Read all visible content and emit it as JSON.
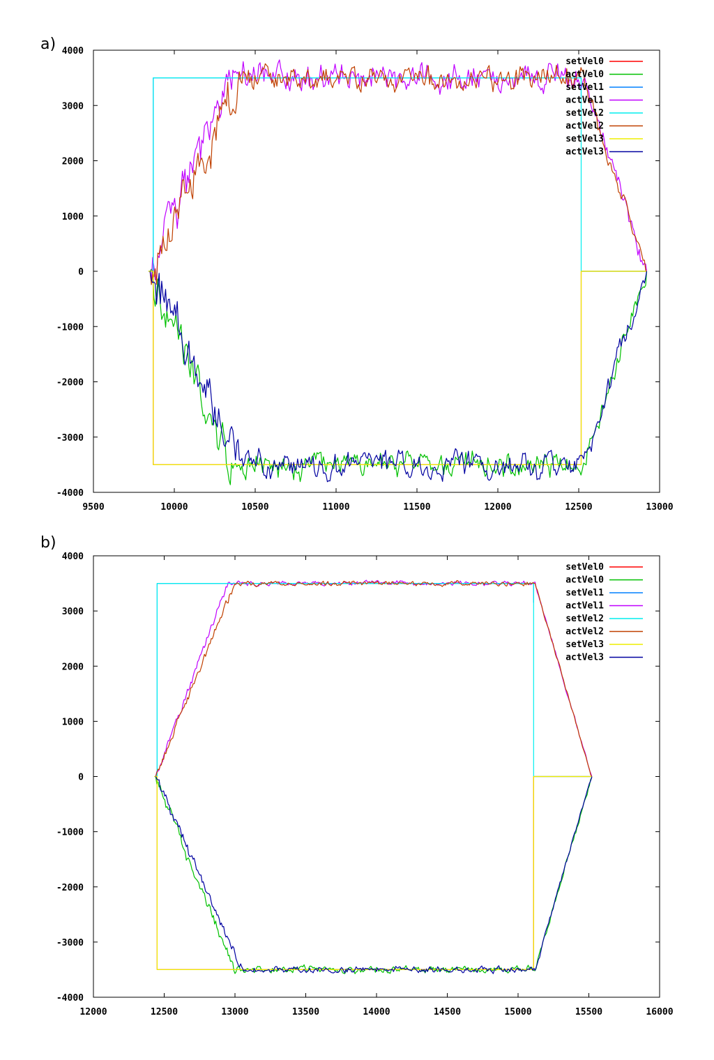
{
  "chart_data": [
    {
      "panel_label": "a)",
      "type": "line",
      "xlim": [
        9500,
        13000
      ],
      "ylim": [
        -4000,
        4000
      ],
      "x_ticks": [
        "9500",
        "10000",
        "10500",
        "11000",
        "11500",
        "12000",
        "12500",
        "13000"
      ],
      "y_ticks": [
        "4000",
        "3000",
        "2000",
        "1000",
        "0",
        "-1000",
        "-2000",
        "-3000",
        "-4000"
      ],
      "grid": false,
      "legend_position": "top-right",
      "t0": 9850,
      "t_step": 9870,
      "t_down": 12515,
      "t_end": 12920,
      "series": [
        {
          "name": "setVel0",
          "color": "#ff0000",
          "role": "set",
          "sign": -1,
          "end_value": 0
        },
        {
          "name": "actVel0",
          "color": "#00c000",
          "role": "act",
          "sign": -1,
          "noise": 160,
          "ramp_end": 10350
        },
        {
          "name": "setVel1",
          "color": "#0080ff",
          "role": "set",
          "sign": 1,
          "end_value": 3500
        },
        {
          "name": "actVel1",
          "color": "#c000ff",
          "role": "act",
          "sign": 1,
          "noise": 180,
          "ramp_end": 10330
        },
        {
          "name": "setVel2",
          "color": "#00eeee",
          "role": "set",
          "sign": 1,
          "end_value": 0
        },
        {
          "name": "actVel2",
          "color": "#c04000",
          "role": "act",
          "sign": 1,
          "noise": 150,
          "ramp_end": 10400
        },
        {
          "name": "setVel3",
          "color": "#eeee00",
          "role": "set",
          "sign": -1,
          "end_value": 0
        },
        {
          "name": "actVel3",
          "color": "#0000a0",
          "role": "act",
          "sign": -1,
          "noise": 170,
          "ramp_end": 10400
        }
      ]
    },
    {
      "panel_label": "b)",
      "type": "line",
      "xlim": [
        12000,
        16000
      ],
      "ylim": [
        -4000,
        4000
      ],
      "x_ticks": [
        "12000",
        "12500",
        "13000",
        "13500",
        "14000",
        "14500",
        "15000",
        "15500",
        "16000"
      ],
      "y_ticks": [
        "4000",
        "3000",
        "2000",
        "1000",
        "0",
        "-1000",
        "-2000",
        "-3000",
        "-4000"
      ],
      "grid": false,
      "legend_position": "top-right",
      "t0": 12440,
      "t_step": 12450,
      "t_down": 15110,
      "t_end": 15520,
      "series": [
        {
          "name": "setVel0",
          "color": "#ff0000",
          "role": "set",
          "sign": -1,
          "end_value": 0
        },
        {
          "name": "actVel0",
          "color": "#00c000",
          "role": "act",
          "sign": -1,
          "noise": 45,
          "ramp_end": 13000
        },
        {
          "name": "setVel1",
          "color": "#0080ff",
          "role": "set",
          "sign": 1,
          "end_value": 3500
        },
        {
          "name": "actVel1",
          "color": "#c000ff",
          "role": "act",
          "sign": 1,
          "noise": 30,
          "ramp_end": 12950
        },
        {
          "name": "setVel2",
          "color": "#00eeee",
          "role": "set",
          "sign": 1,
          "end_value": 0
        },
        {
          "name": "actVel2",
          "color": "#c04000",
          "role": "act",
          "sign": 1,
          "noise": 30,
          "ramp_end": 13000
        },
        {
          "name": "setVel3",
          "color": "#eeee00",
          "role": "set",
          "sign": -1,
          "end_value": 0
        },
        {
          "name": "actVel3",
          "color": "#0000a0",
          "role": "act",
          "sign": -1,
          "noise": 40,
          "ramp_end": 13050
        }
      ]
    }
  ]
}
